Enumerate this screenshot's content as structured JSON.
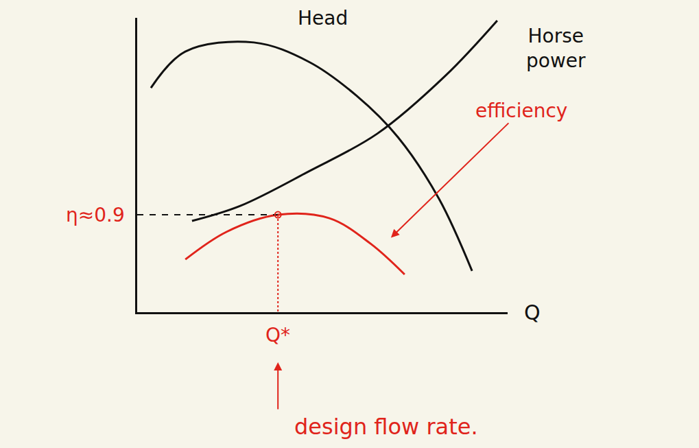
{
  "chart_data": {
    "type": "line",
    "x_label": "Q",
    "xlim": [
      0,
      10
    ],
    "ylim": [
      0,
      11
    ],
    "xticks": [],
    "yticks": [],
    "tick_labels": false,
    "grid": false,
    "series": [
      {
        "name": "Head",
        "color": "#111111",
        "x": [
          0.37,
          1.3,
          3.15,
          4.63,
          5.93,
          7.04,
          8.15,
          9.04
        ],
        "values": [
          8.38,
          9.74,
          10.08,
          9.36,
          8.08,
          6.54,
          4.23,
          1.54
        ]
      },
      {
        "name": "Horse power",
        "color": "#111111",
        "x": [
          1.48,
          2.78,
          4.63,
          6.48,
          8.33,
          9.72
        ],
        "values": [
          3.41,
          3.97,
          5.26,
          6.67,
          8.85,
          10.9
        ]
      },
      {
        "name": "efficiency",
        "color": "#e0241b",
        "x": [
          1.3,
          2.41,
          3.8,
          5.19,
          6.3,
          7.22
        ],
        "values": [
          1.97,
          3.0,
          3.64,
          3.51,
          2.56,
          1.41
        ]
      }
    ],
    "design_point": {
      "x": 3.8,
      "y": 3.64
    },
    "annotations": {
      "peak_efficiency": "η≈0.9",
      "design_point_label": "Q*",
      "design_point_note": "design flow rate."
    }
  }
}
